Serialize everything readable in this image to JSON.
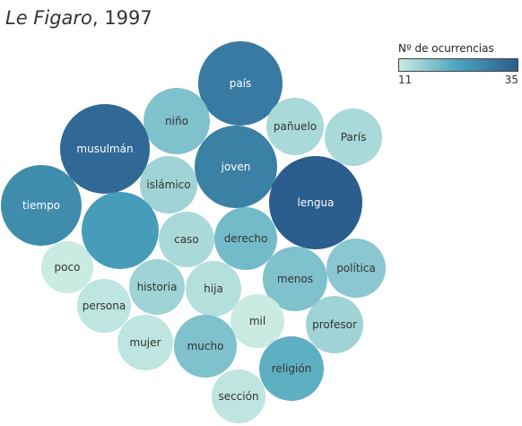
{
  "title": {
    "publication": "Le Figaro",
    "year": ", 1997"
  },
  "legend": {
    "title": "Nº de ocurrencias",
    "min_label": "11",
    "max_label": "35",
    "min_color": "#c9ebe2",
    "max_color": "#2b5d8d"
  },
  "chart_data": {
    "type": "bubble",
    "title": "Le Figaro, 1997",
    "color_scale": {
      "min": 11,
      "max": 35
    },
    "bubbles": [
      {
        "label": "país",
        "value": 30
      },
      {
        "label": "niño",
        "value": 18
      },
      {
        "label": "pañuelo",
        "value": 14
      },
      {
        "label": "París",
        "value": 14
      },
      {
        "label": "musulmán",
        "value": 33
      },
      {
        "label": "joven",
        "value": 29
      },
      {
        "label": "islámico",
        "value": 15
      },
      {
        "label": "lengua",
        "value": 35
      },
      {
        "label": "tiempo",
        "value": 27
      },
      {
        "label": "",
        "value": 24
      },
      {
        "label": "caso",
        "value": 14
      },
      {
        "label": "derecho",
        "value": 19
      },
      {
        "label": "poco",
        "value": 11
      },
      {
        "label": "historia",
        "value": 15
      },
      {
        "label": "hija",
        "value": 13
      },
      {
        "label": "menos",
        "value": 18
      },
      {
        "label": "política",
        "value": 17
      },
      {
        "label": "persona",
        "value": 12
      },
      {
        "label": "mil",
        "value": 11
      },
      {
        "label": "profesor",
        "value": 15
      },
      {
        "label": "mujer",
        "value": 12
      },
      {
        "label": "mucho",
        "value": 18
      },
      {
        "label": "religión",
        "value": 21
      },
      {
        "label": "sección",
        "value": 12
      }
    ]
  }
}
